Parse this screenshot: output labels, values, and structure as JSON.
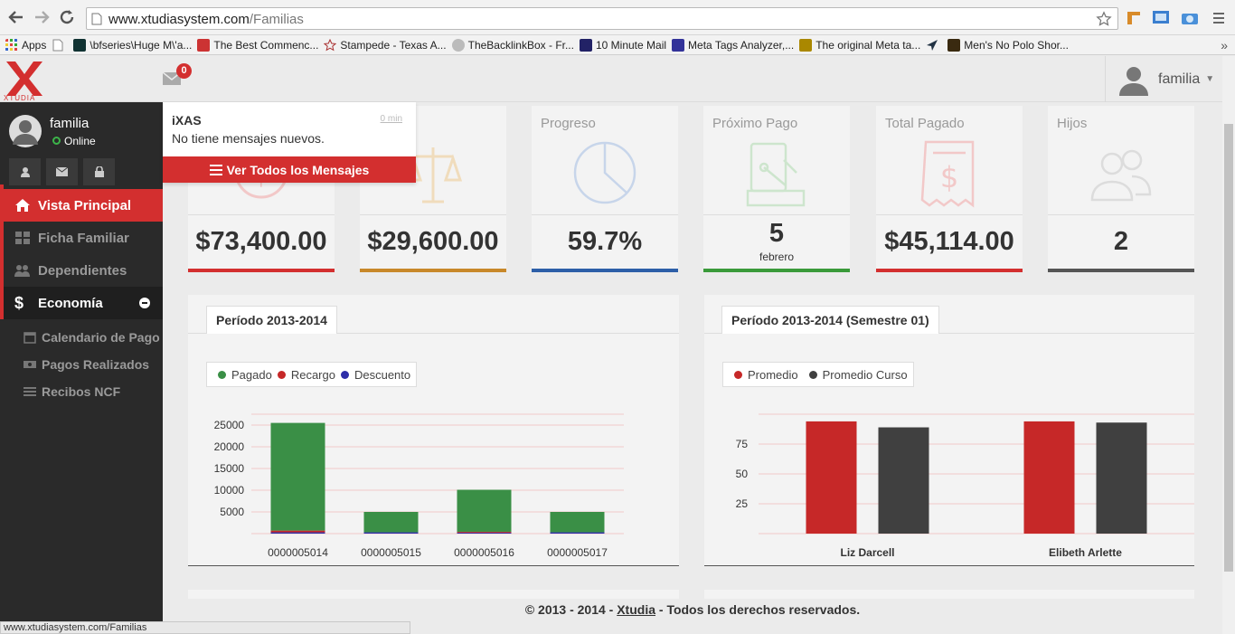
{
  "browser": {
    "url_host": "www.xtudiasystem.com",
    "url_path": "/Familias",
    "bookmarks": [
      {
        "label": "Apps",
        "color": "#d44"
      },
      {
        "label": "",
        "color": "#fff"
      },
      {
        "label": "\\bfseries\\Huge M\\'a...",
        "color": "#133"
      },
      {
        "label": "The Best Commenc...",
        "color": "#c33"
      },
      {
        "label": "Stampede - Texas A...",
        "color": "#a33"
      },
      {
        "label": "TheBacklinkBox - Fr...",
        "color": "#999"
      },
      {
        "label": "10 Minute Mail",
        "color": "#226"
      },
      {
        "label": "Meta Tags Analyzer,...",
        "color": "#339"
      },
      {
        "label": "The original Meta ta...",
        "color": "#a80"
      },
      {
        "label": "",
        "color": "#234"
      },
      {
        "label": "Men's No Polo Shor...",
        "color": "#3a2a10"
      }
    ],
    "status_url": "www.xtudiasystem.com/Familias"
  },
  "header": {
    "logo_text": "XTUDIA",
    "mail_count": "0",
    "username": "familia"
  },
  "sidebar": {
    "user_name": "familia",
    "user_status": "Online",
    "menu": [
      {
        "label": "Vista Principal",
        "icon": "home-icon",
        "active": true
      },
      {
        "label": "Ficha Familiar",
        "icon": "grid-icon"
      },
      {
        "label": "Dependientes",
        "icon": "users-icon"
      },
      {
        "label": "Economía",
        "icon": "dollar-icon"
      }
    ],
    "submenu": [
      {
        "label": "Calendario de Pago",
        "icon": "calendar-icon"
      },
      {
        "label": "Pagos Realizados",
        "icon": "money-icon"
      },
      {
        "label": "Recibos NCF",
        "icon": "list-icon"
      }
    ]
  },
  "dropdown": {
    "title": "iXAS",
    "time": "0 min",
    "message": "No tiene mensajes nuevos.",
    "button": "Ver Todos los Mensajes"
  },
  "cards": [
    {
      "title": "",
      "value": "$73,400.00",
      "sub": "",
      "color": "#d32f2f"
    },
    {
      "title": "",
      "value": "$29,600.00",
      "sub": "",
      "color": "#c8882a"
    },
    {
      "title": "Progreso",
      "value": "59.7%",
      "sub": "",
      "color": "#2d5fa8"
    },
    {
      "title": "Próximo Pago",
      "value": "5",
      "sub": "febrero",
      "color": "#3a9a3a"
    },
    {
      "title": "Total Pagado",
      "value": "$45,114.00",
      "sub": "",
      "color": "#d32f2f"
    },
    {
      "title": "Hijos",
      "value": "2",
      "sub": "",
      "color": "#555555"
    }
  ],
  "panels": {
    "left_title": "Período 2013-2014",
    "right_title": "Período 2013-2014 (Semestre 01)"
  },
  "chart_data": [
    {
      "type": "bar",
      "categories": [
        "0000005014",
        "0000005015",
        "0000005016",
        "0000005017"
      ],
      "series": [
        {
          "name": "Pagado",
          "color": "#3a8f46",
          "values": [
            24800,
            4700,
            9700,
            4700
          ]
        },
        {
          "name": "Recargo",
          "color": "#c62828",
          "values": [
            400,
            0,
            100,
            0
          ]
        },
        {
          "name": "Descuento",
          "color": "#2e2ea8",
          "values": [
            300,
            300,
            300,
            300
          ]
        }
      ],
      "yticks": [
        5000,
        10000,
        15000,
        20000,
        25000
      ],
      "ylim": [
        0,
        27500
      ]
    },
    {
      "type": "bar",
      "categories": [
        "Liz Darcell",
        "Elibeth Arlette"
      ],
      "series": [
        {
          "name": "Promedio",
          "color": "#c62828",
          "values": [
            94,
            94
          ]
        },
        {
          "name": "Promedio Curso",
          "color": "#404040",
          "values": [
            89,
            93
          ]
        }
      ],
      "yticks": [
        25,
        50,
        75
      ],
      "ylim": [
        0,
        100
      ]
    }
  ],
  "footer": {
    "prefix": "© 2013 - 2014 -",
    "link": "Xtudia",
    "suffix": "- Todos los derechos reservados."
  }
}
